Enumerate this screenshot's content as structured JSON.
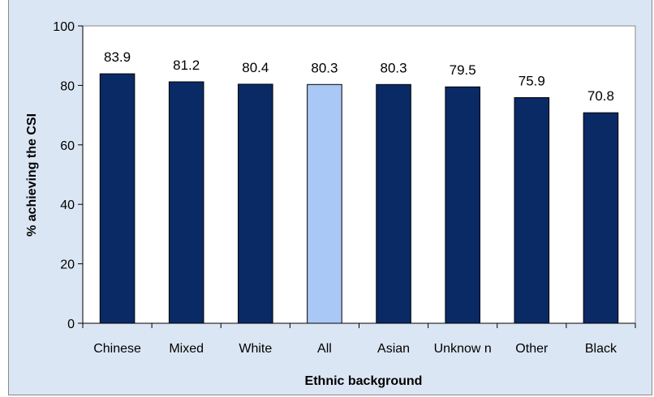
{
  "chart_data": {
    "type": "bar",
    "title": "",
    "xlabel": "Ethnic background",
    "ylabel": "% achieving the CSI",
    "ylim": [
      0,
      100
    ],
    "yticks": [
      "0",
      "20",
      "40",
      "60",
      "80",
      "100"
    ],
    "categories": [
      "Chinese",
      "Mixed",
      "White",
      "All",
      "Asian",
      "Unknow n",
      "Other",
      "Black"
    ],
    "values": [
      83.9,
      81.2,
      80.4,
      80.3,
      80.3,
      79.5,
      75.9,
      70.8
    ],
    "value_labels": [
      "83.9",
      "81.2",
      "80.4",
      "80.3",
      "80.3",
      "79.5",
      "75.9",
      "70.8"
    ],
    "highlight_category": "All",
    "grid": false,
    "legend": "none",
    "colors": {
      "bar": "#0a2a66",
      "bar_highlight": "#a9c8f5",
      "bar_stroke": "#000000",
      "plot_background": "#ffffff",
      "chart_background": "#dbe6f4",
      "text": "#000000"
    }
  }
}
